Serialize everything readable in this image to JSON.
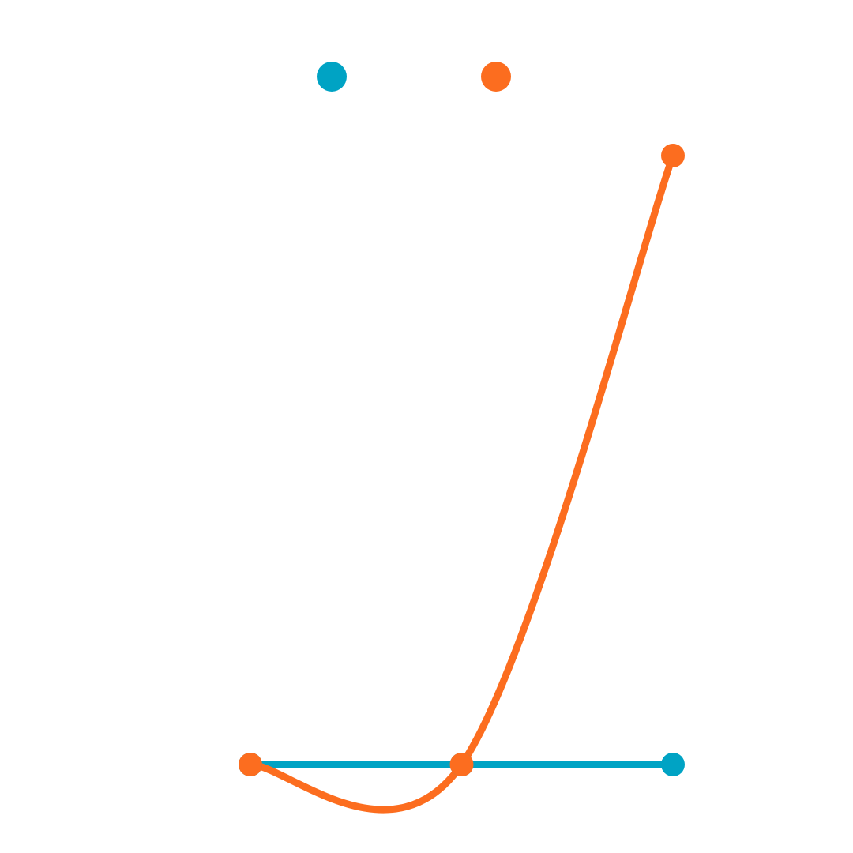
{
  "chart_data": {
    "type": "line",
    "x": [
      0,
      1,
      2
    ],
    "series": [
      {
        "color": "#00A3C4",
        "values": [
          0,
          0,
          0
        ]
      },
      {
        "color": "#FC6D1F",
        "values": [
          0,
          0,
          1
        ]
      }
    ],
    "xlim": [
      0,
      2
    ],
    "ylim": [
      0,
      1
    ],
    "grid": false,
    "legend": "top-center"
  }
}
